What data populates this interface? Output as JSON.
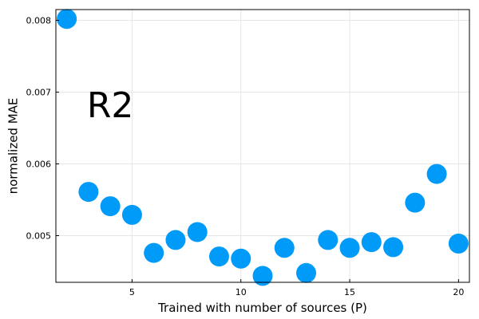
{
  "chart_data": {
    "type": "scatter",
    "xlabel": "Trained with number of sources (P)",
    "ylabel": "normalized MAE",
    "xlim": [
      1.5,
      20.5
    ],
    "ylim": [
      0.00435,
      0.00815
    ],
    "xticks": [
      5,
      10,
      15,
      20
    ],
    "yticks": [
      0.005,
      0.006,
      0.007,
      0.008
    ],
    "xtick_labels": [
      "5",
      "10",
      "15",
      "20"
    ],
    "ytick_labels": [
      "0.005",
      "0.006",
      "0.007",
      "0.008"
    ],
    "grid": true,
    "legend": false,
    "annotation": {
      "text": "R2",
      "x": 4,
      "y": 0.00683
    },
    "series": [
      {
        "color": "#009af9",
        "x": [
          2,
          3,
          4,
          5,
          6,
          7,
          8,
          9,
          10,
          11,
          12,
          13,
          14,
          15,
          16,
          17,
          18,
          19,
          20
        ],
        "y": [
          0.00802,
          0.00561,
          0.00541,
          0.00529,
          0.00476,
          0.00494,
          0.00505,
          0.00471,
          0.00468,
          0.00444,
          0.00483,
          0.00448,
          0.00494,
          0.00483,
          0.00491,
          0.00484,
          0.00546,
          0.00586,
          0.00489
        ]
      }
    ]
  }
}
